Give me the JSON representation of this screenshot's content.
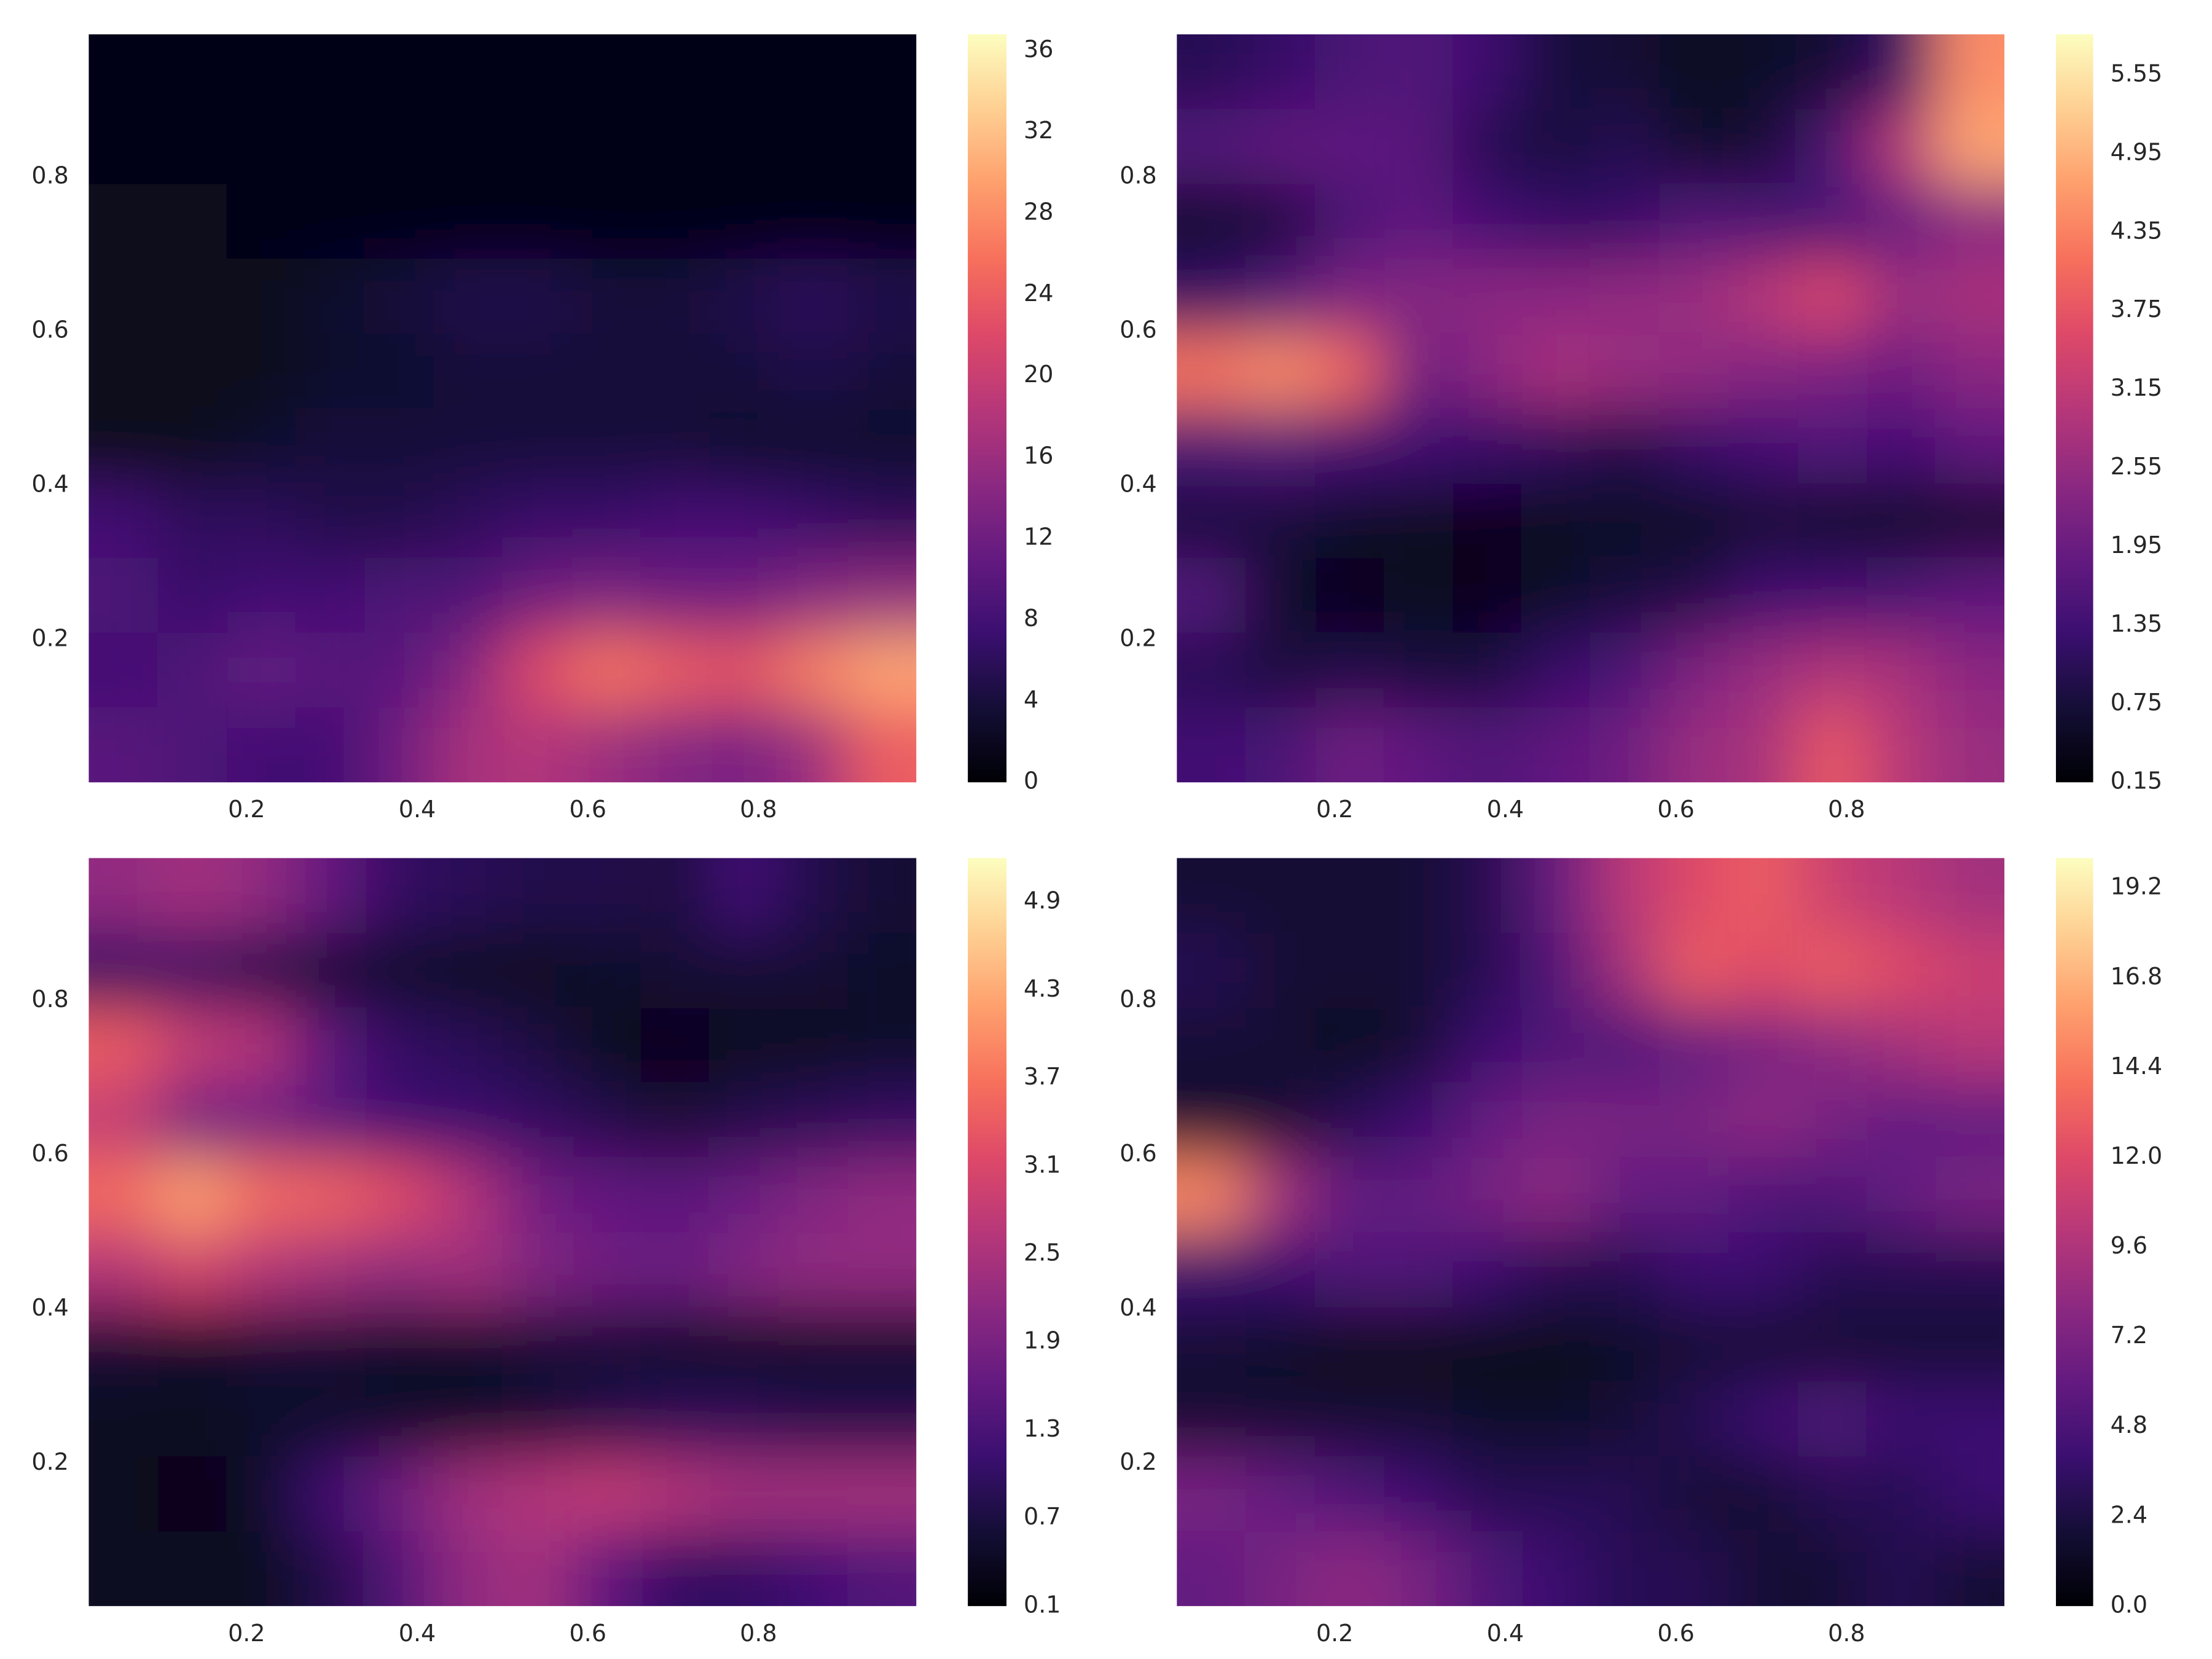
{
  "chart_data": [
    {
      "type": "contour",
      "colormap": "magma",
      "xlim": [
        0.015,
        0.985
      ],
      "ylim": [
        0.015,
        0.985
      ],
      "xticks": [
        0.2,
        0.4,
        0.6,
        0.8
      ],
      "yticks": [
        0.2,
        0.4,
        0.6,
        0.8
      ],
      "clim": [
        0,
        36.8
      ],
      "cticks": [
        0,
        4,
        8,
        12,
        16,
        20,
        24,
        28,
        32,
        36
      ],
      "z": [
        [
          1,
          1,
          1,
          1,
          1,
          1,
          1,
          1,
          1,
          1,
          1,
          1
        ],
        [
          1,
          1,
          1,
          1,
          1,
          1,
          1,
          1,
          1,
          1,
          1,
          1
        ],
        [
          2,
          2,
          1,
          1,
          1,
          1,
          1,
          1,
          1,
          1,
          1,
          1
        ],
        [
          2,
          2,
          2,
          3,
          4,
          5,
          5,
          4,
          4,
          5,
          6,
          5
        ],
        [
          2,
          2,
          2,
          3,
          3,
          4,
          4,
          4,
          4,
          4,
          5,
          4
        ],
        [
          2,
          2,
          3,
          4,
          4,
          4,
          4,
          4,
          4,
          3,
          3,
          3
        ],
        [
          8,
          6,
          6,
          5,
          5,
          6,
          7,
          7,
          8,
          8,
          7,
          6
        ],
        [
          9,
          7,
          8,
          8,
          9,
          9,
          12,
          13,
          12,
          12,
          14,
          15
        ],
        [
          8,
          9,
          11,
          10,
          10,
          14,
          22,
          26,
          24,
          23,
          27,
          30
        ],
        [
          10,
          9,
          8,
          8,
          12,
          17,
          18,
          16,
          14,
          13,
          16,
          24
        ]
      ]
    },
    {
      "type": "contour",
      "colormap": "magma",
      "xlim": [
        0.015,
        0.985
      ],
      "ylim": [
        0.015,
        0.985
      ],
      "xticks": [
        0.2,
        0.4,
        0.6,
        0.8
      ],
      "yticks": [
        0.2,
        0.4,
        0.6,
        0.8
      ],
      "clim": [
        0.15,
        5.86
      ],
      "cticks": [
        0.15,
        0.75,
        1.35,
        1.95,
        2.55,
        3.15,
        3.75,
        4.35,
        4.95,
        5.55
      ],
      "z": [
        [
          1.0,
          1.2,
          1.5,
          1.6,
          1.3,
          0.8,
          0.7,
          0.5,
          0.6,
          0.7,
          1.2,
          4.5
        ],
        [
          1.6,
          1.8,
          1.8,
          1.7,
          1.0,
          0.8,
          1.0,
          0.6,
          0.7,
          1.5,
          3.0,
          4.8
        ],
        [
          0.6,
          0.8,
          1.5,
          1.8,
          1.4,
          1.2,
          1.2,
          1.6,
          1.5,
          1.5,
          1.9,
          2.4
        ],
        [
          1.2,
          1.6,
          2.2,
          2.3,
          2.4,
          2.4,
          2.5,
          2.6,
          3.0,
          3.5,
          2.6,
          2.8
        ],
        [
          4.2,
          4.5,
          4.0,
          2.0,
          2.4,
          2.8,
          2.6,
          2.5,
          2.3,
          2.2,
          2.0,
          2.4
        ],
        [
          1.5,
          1.6,
          1.4,
          1.3,
          1.2,
          1.1,
          0.9,
          1.2,
          1.4,
          1.6,
          1.4,
          1.8
        ],
        [
          0.8,
          0.8,
          0.6,
          0.5,
          0.4,
          0.5,
          0.6,
          0.5,
          0.7,
          0.6,
          0.5,
          0.6
        ],
        [
          1.6,
          0.6,
          0.4,
          0.5,
          0.4,
          0.6,
          0.8,
          0.9,
          1.3,
          1.4,
          1.5,
          1.8
        ],
        [
          1.0,
          0.8,
          0.9,
          0.8,
          0.8,
          1.2,
          1.5,
          2.2,
          2.6,
          2.9,
          2.8,
          2.4
        ],
        [
          1.4,
          1.5,
          2.0,
          1.8,
          1.6,
          1.8,
          2.0,
          2.6,
          2.8,
          3.8,
          3.0,
          2.6
        ]
      ]
    },
    {
      "type": "contour",
      "colormap": "magma",
      "xlim": [
        0.015,
        0.985
      ],
      "ylim": [
        0.015,
        0.985
      ],
      "xticks": [
        0.2,
        0.4,
        0.6,
        0.8
      ],
      "yticks": [
        0.2,
        0.4,
        0.6,
        0.8
      ],
      "clim": [
        0.1,
        5.2
      ],
      "cticks": [
        0.1,
        0.7,
        1.3,
        1.9,
        2.5,
        3.1,
        3.7,
        4.3,
        4.9
      ],
      "z": [
        [
          2.2,
          2.4,
          2.2,
          1.6,
          1.0,
          0.9,
          0.8,
          0.8,
          0.7,
          1.2,
          0.8,
          0.6
        ],
        [
          1.0,
          1.0,
          0.8,
          0.6,
          0.5,
          0.4,
          0.4,
          0.5,
          0.6,
          0.6,
          0.6,
          0.5
        ],
        [
          3.4,
          2.8,
          2.6,
          1.5,
          1.0,
          0.9,
          0.7,
          0.4,
          0.3,
          0.4,
          0.4,
          0.5
        ],
        [
          2.8,
          1.8,
          1.8,
          1.5,
          1.2,
          1.1,
          1.0,
          0.8,
          0.6,
          0.8,
          0.9,
          1.0
        ],
        [
          3.6,
          4.2,
          3.6,
          3.5,
          3.2,
          2.6,
          1.8,
          1.6,
          1.5,
          1.7,
          2.0,
          2.2
        ],
        [
          2.6,
          3.0,
          2.6,
          2.4,
          2.2,
          2.4,
          2.0,
          1.8,
          1.7,
          2.0,
          2.2,
          2.2
        ],
        [
          0.6,
          0.5,
          0.6,
          0.6,
          0.5,
          0.5,
          0.6,
          0.6,
          0.5,
          0.4,
          0.5,
          0.5
        ],
        [
          0.4,
          0.4,
          0.5,
          0.5,
          0.5,
          0.5,
          0.6,
          0.8,
          0.9,
          0.9,
          0.8,
          0.8
        ],
        [
          0.4,
          0.3,
          0.5,
          1.2,
          1.8,
          2.4,
          2.6,
          2.8,
          2.6,
          2.4,
          2.4,
          2.4
        ],
        [
          0.4,
          0.4,
          0.4,
          0.8,
          1.4,
          2.2,
          2.4,
          1.6,
          1.0,
          1.0,
          1.2,
          1.4
        ]
      ]
    },
    {
      "type": "contour",
      "colormap": "magma",
      "xlim": [
        0.015,
        0.985
      ],
      "ylim": [
        0.015,
        0.985
      ],
      "xticks": [
        0.2,
        0.4,
        0.6,
        0.8
      ],
      "yticks": [
        0.2,
        0.4,
        0.6,
        0.8
      ],
      "clim": [
        0,
        20.0
      ],
      "cticks": [
        {
          "value": 0,
          "label": "0.0"
        },
        2.4,
        4.8,
        7.2,
        9.6,
        {
          "value": 12,
          "label": "12.0"
        },
        14.4,
        16.8,
        19.2
      ],
      "z": [
        [
          2,
          2,
          2,
          2,
          3,
          6,
          10,
          12,
          13,
          11,
          10,
          9
        ],
        [
          3,
          2,
          2,
          2,
          3,
          5,
          9,
          13,
          12,
          13,
          12,
          11
        ],
        [
          2,
          2,
          1,
          2,
          4,
          5,
          5,
          6,
          7,
          8,
          9,
          10
        ],
        [
          2,
          2,
          3,
          4,
          6,
          7,
          7,
          7,
          8,
          7,
          6,
          6
        ],
        [
          15,
          9,
          6,
          6,
          7,
          8,
          6,
          6,
          5,
          5,
          6,
          7
        ],
        [
          4,
          4,
          5,
          5,
          4,
          3,
          3,
          4,
          4,
          3,
          3,
          3
        ],
        [
          2,
          1.5,
          1,
          1,
          1,
          1,
          1.5,
          2,
          2,
          2,
          2,
          2
        ],
        [
          2,
          2,
          2,
          2,
          1.5,
          1.5,
          2,
          3,
          4,
          5,
          4,
          4
        ],
        [
          7,
          6,
          5,
          4,
          3,
          3,
          3,
          2,
          2,
          3,
          3,
          4
        ],
        [
          6,
          7,
          8,
          7,
          5,
          4,
          3,
          3,
          2,
          2,
          3,
          2
        ]
      ]
    }
  ]
}
